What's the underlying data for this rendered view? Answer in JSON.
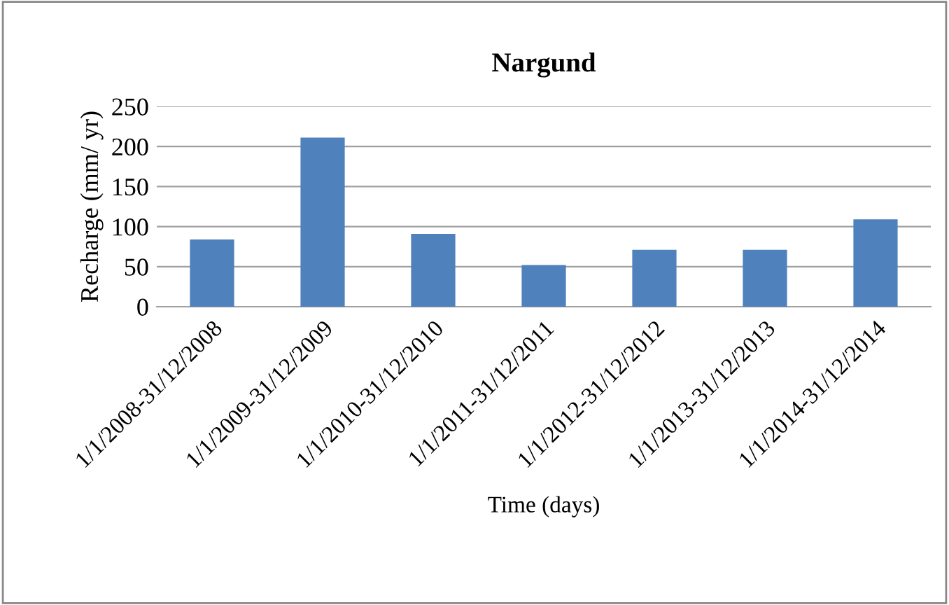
{
  "chart_data": {
    "type": "bar",
    "title": "Nargund",
    "xlabel": "Time (days)",
    "ylabel": "Recharge (mm/ yr)",
    "categories": [
      "1/1/2008-31/12/2008",
      "1/1/2009-31/12/2009",
      "1/1/2010-31/12/2010",
      "1/1/2011-31/12/2011",
      "1/1/2012-31/12/2012",
      "1/1/2013-31/12/2013",
      "1/1/2014-31/12/2014"
    ],
    "values": [
      84,
      211,
      91,
      52,
      71,
      71,
      109
    ],
    "color": "#4f81bd",
    "ylim": [
      0,
      250
    ],
    "yticks": [
      0,
      50,
      100,
      150,
      200,
      250
    ],
    "grid": "y",
    "legend": false
  }
}
